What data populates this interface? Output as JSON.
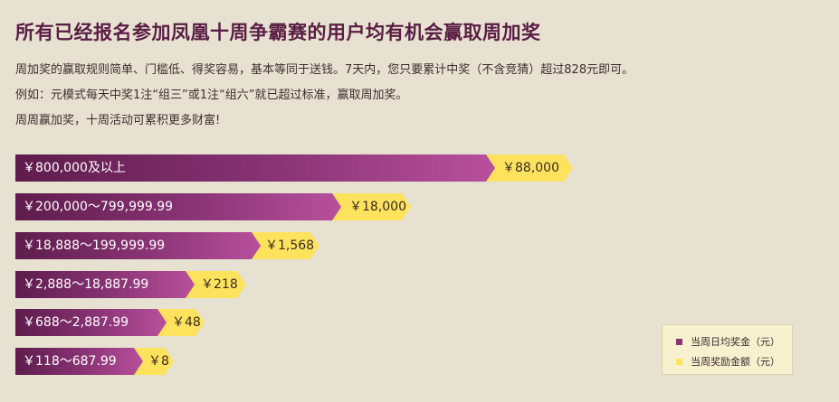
{
  "title": "所有已经报名参加凤凰十周争霸赛的用户均有机会赢取周加奖",
  "description": [
    "周加奖的赢取规则简单、门槛低、得奖容易，基本等同于送钱。7天内，您只要累计中奖（不含竞猜）超过828元即可。",
    "例如：元模式每天中奖1注“组三”或1注“组六”就已超过标准，赢取周加奖。",
    "周周赢加奖，十周活动可累积更多财富!"
  ],
  "colors": {
    "purple": "#8a3475",
    "yellow": "#fde35d",
    "title": "#5a1d44"
  },
  "tiers": [
    {
      "range": "￥800,000及以上",
      "bonus": "￥88,000"
    },
    {
      "range": "￥200,000～799,999.99",
      "bonus": "￥18,000"
    },
    {
      "range": "￥18,888～199,999.99",
      "bonus": "￥1,568"
    },
    {
      "range": "￥2,888～18,887.99",
      "bonus": "￥218"
    },
    {
      "range": "￥688～2,887.99",
      "bonus": "￥48"
    },
    {
      "range": "￥118～687.99",
      "bonus": "￥8"
    }
  ],
  "legend": {
    "daily_label": "当周日均奖金（元）",
    "bonus_label": "当周奖励金额（元）"
  }
}
